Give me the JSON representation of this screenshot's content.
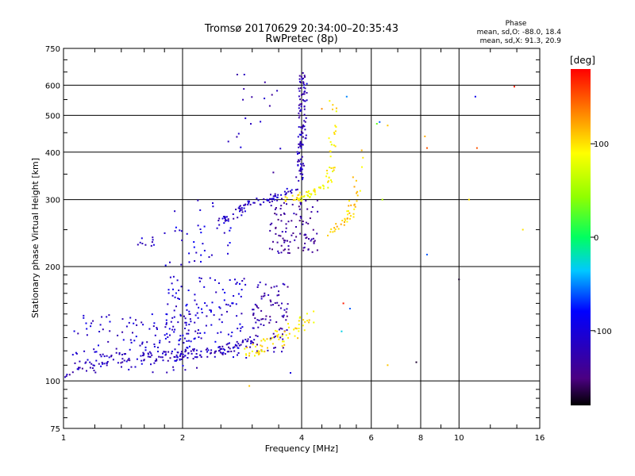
{
  "chart_data": {
    "type": "scatter",
    "title": "Tromsø 20170629 20:34:00–20:35:43",
    "subtitle": "RwPretec (8p)",
    "xlabel": "Frequency [MHz]",
    "ylabel": "Stationary phase Virtual Height [km]",
    "x_scale": "log",
    "y_scale": "log",
    "xlim": [
      1,
      16
    ],
    "ylim": [
      75,
      750
    ],
    "x_ticks": [
      1,
      2,
      4,
      6,
      8,
      10,
      16
    ],
    "x_tick_labels": [
      "1",
      "2",
      "4",
      "6",
      "8",
      "10",
      "16"
    ],
    "y_ticks": [
      75,
      100,
      200,
      300,
      400,
      500,
      600,
      750
    ],
    "y_tick_labels": [
      "75",
      "100",
      "200",
      "300",
      "400",
      "500",
      "600",
      "750"
    ],
    "grid": true,
    "phase_info": {
      "heading": "Phase",
      "line_o": "mean, sd,O: -88.0, 18.4",
      "line_x": "mean, sd,X:  91.3, 20.9"
    },
    "colorbar": {
      "label": "[deg]",
      "range": [
        -180,
        180
      ],
      "ticks": [
        100,
        0,
        -100
      ],
      "tick_labels": [
        "100",
        "0",
        "-100"
      ]
    },
    "traces": [
      {
        "name": "",
        "phase": -120,
        "kind": "curve",
        "x": [
          1.0,
          1.1,
          1.25,
          1.4,
          1.6,
          1.8,
          2.0,
          2.2,
          2.4,
          2.6,
          2.8,
          3.0
        ],
        "y": [
          103,
          108,
          114,
          115,
          116,
          116,
          117,
          118,
          119,
          121,
          124,
          128
        ],
        "spread": 0.03,
        "count": 160
      },
      {
        "name": "",
        "phase": -110,
        "kind": "region",
        "x": [
          1.05,
          2.2
        ],
        "y": [
          104,
          150
        ],
        "count": 130
      },
      {
        "name": "",
        "phase": -105,
        "kind": "region",
        "x": [
          1.8,
          2.9
        ],
        "y": [
          115,
          190
        ],
        "count": 150
      },
      {
        "name": "",
        "phase": -130,
        "kind": "region",
        "x": [
          3.0,
          3.7
        ],
        "y": [
          118,
          185
        ],
        "count": 90
      },
      {
        "name": "",
        "phase": 100,
        "kind": "curve",
        "x": [
          2.9,
          3.1,
          3.4,
          3.7,
          4.0,
          4.2
        ],
        "y": [
          118,
          122,
          127,
          133,
          140,
          148
        ],
        "spread": 0.04,
        "count": 70
      },
      {
        "name": "",
        "phase": -115,
        "kind": "curve",
        "x": [
          2.5,
          2.7,
          2.9,
          3.2,
          3.5,
          3.8,
          4.0,
          4.02,
          4.04
        ],
        "y": [
          262,
          275,
          288,
          298,
          305,
          320,
          360,
          450,
          620
        ],
        "spread": 0.025,
        "count": 120
      },
      {
        "name": "",
        "phase": -120,
        "kind": "curve",
        "x": [
          3.95,
          3.98,
          4.0,
          4.02
        ],
        "y": [
          340,
          420,
          520,
          640
        ],
        "spread": 0.02,
        "count": 70
      },
      {
        "name": "",
        "phase": -135,
        "kind": "region",
        "x": [
          3.3,
          4.4
        ],
        "y": [
          215,
          300
        ],
        "count": 100
      },
      {
        "name": "",
        "phase": 95,
        "kind": "curve",
        "x": [
          3.7,
          4.0,
          4.3,
          4.6,
          4.75,
          4.8,
          4.82
        ],
        "y": [
          300,
          305,
          315,
          330,
          360,
          430,
          560
        ],
        "spread": 0.025,
        "count": 80
      },
      {
        "name": "",
        "phase": 105,
        "kind": "curve",
        "x": [
          4.7,
          5.0,
          5.3,
          5.5,
          5.6
        ],
        "y": [
          245,
          255,
          275,
          320,
          410
        ],
        "spread": 0.025,
        "count": 45
      },
      {
        "name": "",
        "phase": -100,
        "kind": "region",
        "x": [
          1.8,
          2.7
        ],
        "y": [
          200,
          300
        ],
        "count": 40
      },
      {
        "name": "",
        "phase": -120,
        "kind": "region",
        "x": [
          2.6,
          3.6
        ],
        "y": [
          340,
          640
        ],
        "count": 18
      },
      {
        "name": "",
        "phase": -110,
        "kind": "region",
        "x": [
          1.5,
          1.7
        ],
        "y": [
          225,
          240
        ],
        "count": 10
      }
    ],
    "scatter_points": [
      {
        "x": 2.75,
        "y": 640,
        "phase": -130
      },
      {
        "x": 6.3,
        "y": 480,
        "phase": -60
      },
      {
        "x": 6.6,
        "y": 470,
        "phase": 110
      },
      {
        "x": 8.2,
        "y": 440,
        "phase": 120
      },
      {
        "x": 8.3,
        "y": 410,
        "phase": 150
      },
      {
        "x": 11.0,
        "y": 560,
        "phase": -90
      },
      {
        "x": 11.1,
        "y": 410,
        "phase": 150
      },
      {
        "x": 13.8,
        "y": 595,
        "phase": 170
      },
      {
        "x": 14.5,
        "y": 250,
        "phase": 100
      },
      {
        "x": 6.4,
        "y": 300,
        "phase": 60
      },
      {
        "x": 8.3,
        "y": 215,
        "phase": -60
      },
      {
        "x": 10.0,
        "y": 185,
        "phase": -170
      },
      {
        "x": 5.1,
        "y": 160,
        "phase": 170
      },
      {
        "x": 5.3,
        "y": 155,
        "phase": -60
      },
      {
        "x": 5.05,
        "y": 135,
        "phase": -30
      },
      {
        "x": 6.6,
        "y": 110,
        "phase": 110
      },
      {
        "x": 7.8,
        "y": 112,
        "phase": -170
      },
      {
        "x": 3.75,
        "y": 105,
        "phase": -100
      },
      {
        "x": 2.95,
        "y": 97,
        "phase": 110
      },
      {
        "x": 6.2,
        "y": 475,
        "phase": 30
      },
      {
        "x": 5.2,
        "y": 560,
        "phase": -50
      },
      {
        "x": 4.5,
        "y": 520,
        "phase": 130
      },
      {
        "x": 10.6,
        "y": 300,
        "phase": 100
      }
    ]
  }
}
